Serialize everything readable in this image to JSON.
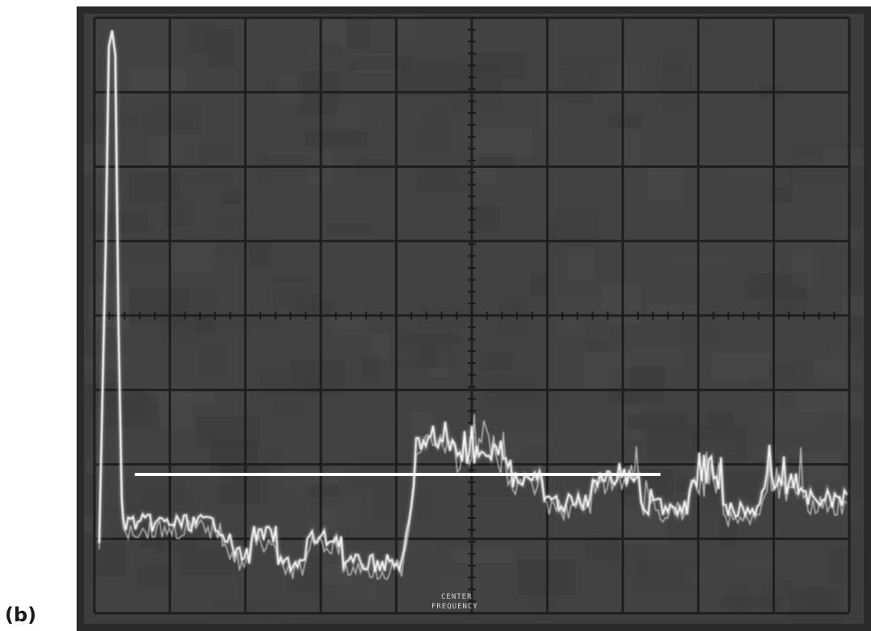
{
  "figure": {
    "panel_label": "(b)"
  },
  "photo": {
    "description_kind": "oscilloscope-spectrum-analyzer-screen",
    "colors": {
      "screen": "#3a3a3a",
      "grid": "#1c1c1c",
      "trace": "#f2f2f2",
      "reference_line": "#ffffff"
    },
    "screen_text": {
      "center_label": "CENTER",
      "center_value": "FREQUENCY"
    }
  }
}
